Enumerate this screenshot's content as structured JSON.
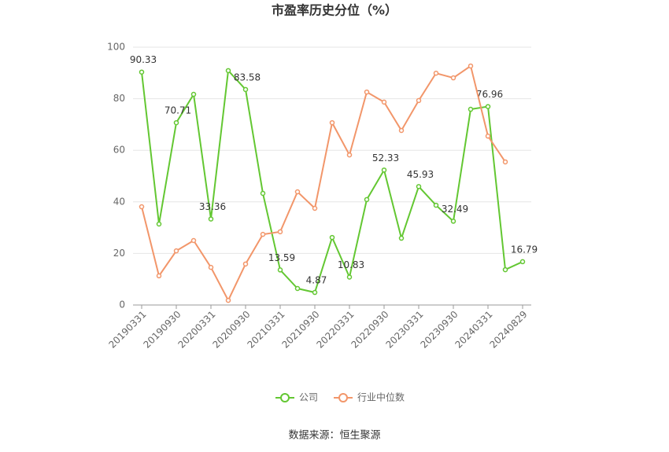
{
  "chart_data": {
    "type": "line",
    "title": "市盈率历史分位（%）",
    "categories": [
      "20190331",
      null,
      "20190930",
      null,
      "20200331",
      null,
      "20200930",
      null,
      "20210331",
      null,
      "20210930",
      null,
      "20220331",
      null,
      "20220930",
      null,
      "20230331",
      null,
      "20230930",
      null,
      "20240331",
      null,
      "20240829"
    ],
    "series": [
      {
        "name": "公司",
        "color": "#63c732",
        "values": [
          90.33,
          31.4,
          70.71,
          81.7,
          33.36,
          90.9,
          83.58,
          43.3,
          13.59,
          6.4,
          4.87,
          26.2,
          10.83,
          40.9,
          52.33,
          25.9,
          45.93,
          38.7,
          32.49,
          75.9,
          76.96,
          13.7,
          16.79
        ],
        "value_labels": [
          "90.33",
          null,
          "70.71",
          null,
          "33.36",
          null,
          "83.58",
          null,
          "13.59",
          null,
          "4.87",
          null,
          "10.83",
          null,
          "52.33",
          null,
          "45.93",
          null,
          "32.49",
          null,
          "76.96",
          null,
          "16.79"
        ]
      },
      {
        "name": "行业中位数",
        "color": "#f2966a",
        "values": [
          38.1,
          11.3,
          21.0,
          25.0,
          14.6,
          1.8,
          15.9,
          27.4,
          28.4,
          43.9,
          37.5,
          70.7,
          58.2,
          82.6,
          78.7,
          67.7,
          79.3,
          89.9,
          88.1,
          92.7,
          65.5,
          55.5,
          null
        ]
      }
    ],
    "ylim": [
      0,
      100
    ],
    "yticks": [
      0,
      20,
      40,
      60,
      80,
      100
    ],
    "grid": true,
    "legend": "bottom",
    "source": "数据来源：恒生聚源"
  }
}
